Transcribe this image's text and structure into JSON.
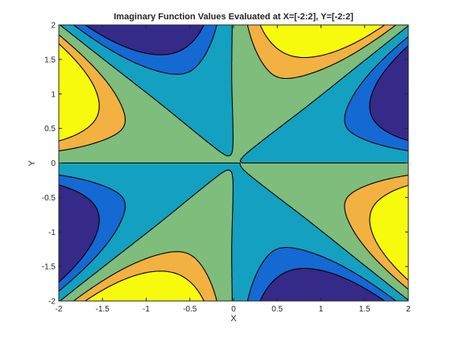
{
  "chart_data": {
    "type": "contour",
    "title": "Imaginary Function Values Evaluated at X=[-2:2], Y=[-2:2]",
    "xlabel": "X",
    "ylabel": "Y",
    "xlim": [
      -2,
      2
    ],
    "ylim": [
      -2,
      2
    ],
    "xticks": [
      "-2",
      "-1.5",
      "-1",
      "-0.5",
      "0",
      "0.5",
      "1",
      "1.5",
      "2"
    ],
    "yticks": [
      "-2",
      "-1.5",
      "-1",
      "-0.5",
      "0",
      "0.5",
      "1",
      "1.5",
      "2"
    ],
    "colormap": "parula",
    "fill_colors": [
      "#352a87",
      "#1569d3",
      "#14a0c0",
      "#7ebd7b",
      "#f2b141",
      "#f8fa0d"
    ],
    "contour_line_color": "#000000",
    "grid": false,
    "box": true
  }
}
